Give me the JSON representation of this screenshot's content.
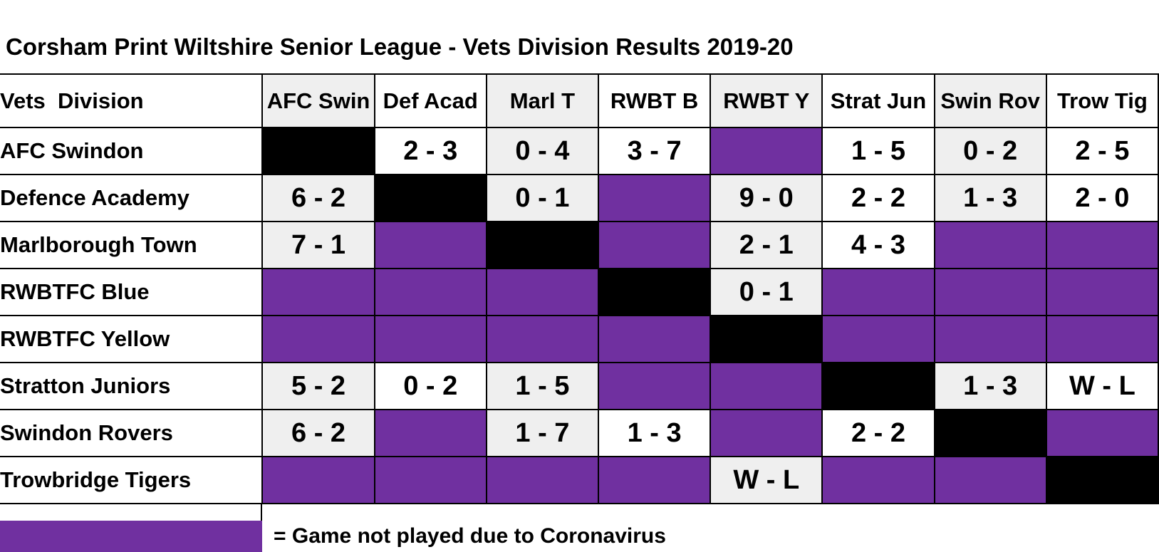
{
  "title": "Corsham Print Wiltshire Senior League - Vets Division Results 2019-20",
  "chart_data": {
    "type": "table",
    "title": "Corsham Print Wiltshire Senior League - Vets Division Results 2019-20",
    "corner_label": "Vets  Division",
    "columns": [
      "AFC Swin",
      "Def Acad",
      "Marl T",
      "RWBT B",
      "RWBT Y",
      "Strat Jun",
      "Swin Rov",
      "Trow Tig"
    ],
    "rows": [
      {
        "team": "AFC Swindon",
        "cells": [
          "self",
          "2 - 3",
          "0 - 4",
          "3 - 7",
          "np",
          "1 - 5",
          "0 - 2",
          "2 - 5"
        ]
      },
      {
        "team": "Defence Academy",
        "cells": [
          "6 - 2",
          "self",
          "0 - 1",
          "np",
          "9 - 0",
          "2 - 2",
          "1 - 3",
          "2 - 0"
        ]
      },
      {
        "team": "Marlborough Town",
        "cells": [
          "7 - 1",
          "np",
          "self",
          "np",
          "2 - 1",
          "4 - 3",
          "np",
          "np"
        ]
      },
      {
        "team": "RWBTFC Blue",
        "cells": [
          "np",
          "np",
          "np",
          "self",
          "0 - 1",
          "np",
          "np",
          "np"
        ]
      },
      {
        "team": "RWBTFC Yellow",
        "cells": [
          "np",
          "np",
          "np",
          "np",
          "self",
          "np",
          "np",
          "np"
        ]
      },
      {
        "team": "Stratton Juniors",
        "cells": [
          "5 - 2",
          "0 - 2",
          "1 - 5",
          "np",
          "np",
          "self",
          "1 - 3",
          "W - L"
        ]
      },
      {
        "team": "Swindon Rovers",
        "cells": [
          "6 - 2",
          "np",
          "1 - 7",
          "1 - 3",
          "np",
          "2 - 2",
          "self",
          "np"
        ]
      },
      {
        "team": "Trowbridge Tigers",
        "cells": [
          "np",
          "np",
          "np",
          "np",
          "W - L",
          "np",
          "np",
          "self"
        ]
      }
    ],
    "cell_codes": {
      "np": "Game not played due to Coronavirus (purple cell)",
      "self": "Same team diagonal (black cell)"
    },
    "layout_hints": {
      "shaded_columns": [
        "AFC Swin",
        "RWBT Y",
        "Marl T",
        "Swin Rov"
      ],
      "grid": "on"
    }
  },
  "legend": {
    "label": "= Game not played due to Coronavirus"
  },
  "colors": {
    "not_played": "#7030A0",
    "self_cell": "#000000",
    "alt_column": "#efefef",
    "border": "#000000",
    "background": "#ffffff"
  }
}
